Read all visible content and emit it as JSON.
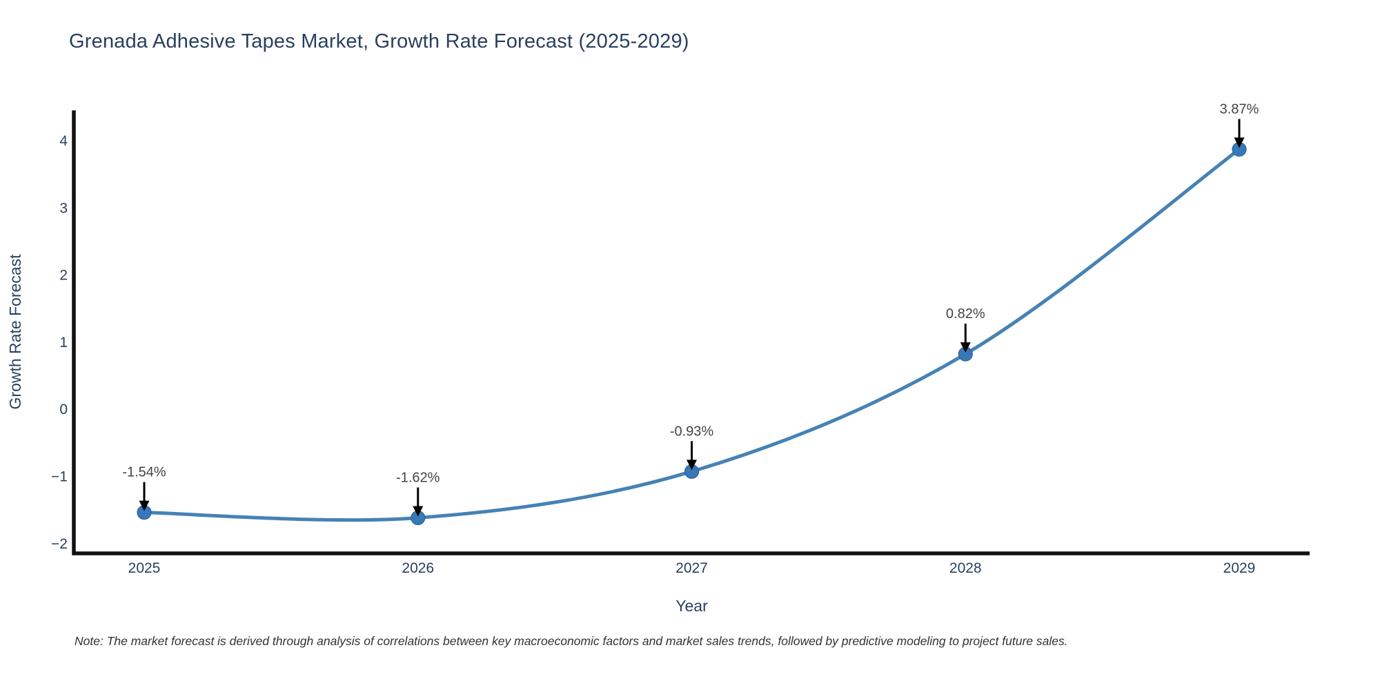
{
  "note": "Note: The market forecast is derived through analysis of correlations between key macroeconomic factors and market sales trends, followed by predictive modeling to project future sales.",
  "chart_data": {
    "type": "line",
    "title": "Grenada Adhesive Tapes Market, Growth Rate Forecast (2025-2029)",
    "x": [
      "2025",
      "2026",
      "2027",
      "2028",
      "2029"
    ],
    "y": [
      -1.54,
      -1.62,
      -0.93,
      0.82,
      3.87
    ],
    "point_labels": [
      "-1.54%",
      "-1.62%",
      "-0.93%",
      "0.82%",
      "3.87%"
    ],
    "xlabel": "Year",
    "ylabel": "Growth Rate Forecast",
    "y_ticks": [
      -2,
      -1,
      0,
      1,
      2,
      3,
      4
    ],
    "y_tick_labels": [
      "−2",
      "−1",
      "0",
      "1",
      "2",
      "3",
      "4"
    ],
    "ylim": [
      -2.15,
      4.45
    ],
    "line_shape": "spline",
    "grid": false,
    "legend_position": "none",
    "annotation_arrows": true,
    "colors": {
      "line": "#4682b4",
      "marker": "#3878b8",
      "marker_edge": "#2e6496",
      "axis": "#111111",
      "arrow": "#000000",
      "title_text": "#2a3f5f",
      "tick_text": "#2a3f5f",
      "axis_title_text": "#2a3f5f",
      "annotation_text": "#444444",
      "note_text": "#333333",
      "background": "#ffffff"
    }
  }
}
